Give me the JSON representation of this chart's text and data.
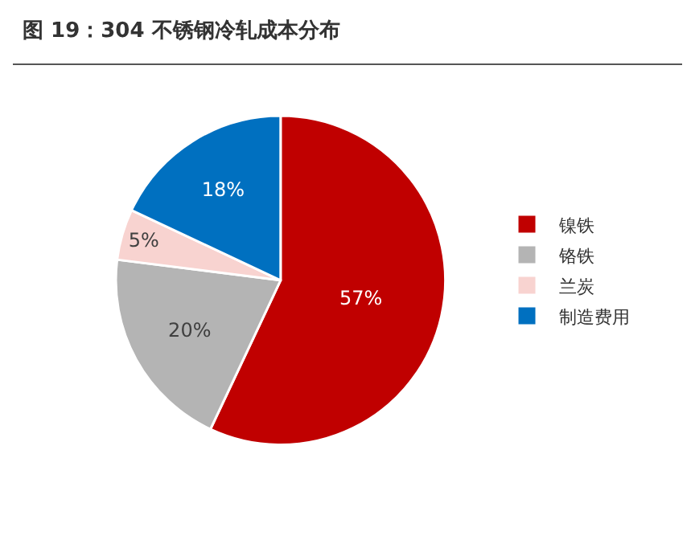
{
  "chart_data": {
    "type": "pie",
    "title": "图 19：304 不锈钢冷轧成本分布",
    "categories": [
      "镍铁",
      "铬铁",
      "兰炭",
      "制造费用"
    ],
    "values": [
      57,
      20,
      5,
      18
    ],
    "colors": [
      "#c00000",
      "#b4b4b4",
      "#f8d3d0",
      "#0070c0"
    ],
    "value_labels": [
      "57%",
      "20%",
      "5%",
      "18%"
    ],
    "legend": "right"
  }
}
